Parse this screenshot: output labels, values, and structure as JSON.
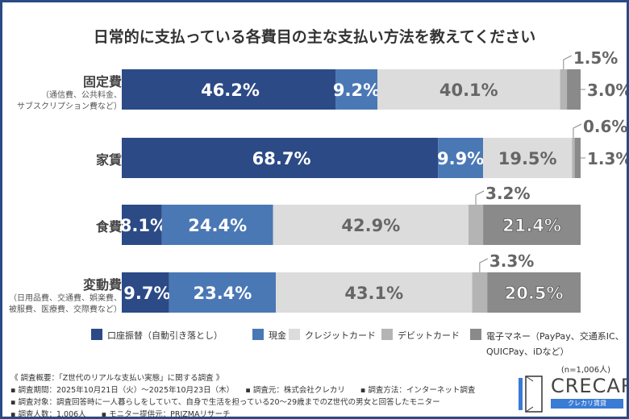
{
  "chart_data": {
    "type": "bar",
    "orientation": "horizontal-stacked-100",
    "title": "日常的に支払っている各費目の主な支払い方法を教えてください",
    "categories": [
      {
        "label": "固定費",
        "sub": [
          "（通信費、公共料金、",
          "サブスクリプション費など）"
        ]
      },
      {
        "label": "家賃",
        "sub": []
      },
      {
        "label": "食費",
        "sub": []
      },
      {
        "label": "変動費",
        "sub": [
          "（日用品費、交通費、娯楽費、",
          "被服費、医療費、交際費など）"
        ]
      }
    ],
    "series": [
      {
        "name": "口座振替（自動引き落とし）",
        "color": "#2b4a86",
        "values": [
          46.2,
          68.7,
          8.1,
          9.7
        ]
      },
      {
        "name": "現金",
        "color": "#4a78b5",
        "values": [
          9.2,
          9.9,
          24.4,
          23.4
        ]
      },
      {
        "name": "クレジットカード",
        "color": "#dcdcdc",
        "values": [
          40.1,
          19.5,
          42.9,
          43.1
        ]
      },
      {
        "name": "デビットカード",
        "color": "#b4b4b4",
        "values": [
          1.5,
          0.6,
          3.2,
          3.3
        ]
      },
      {
        "name": "電子マネー（PayPay、交通系IC、QUICPay、iDなど）",
        "color": "#8a8a8a",
        "values": [
          3.0,
          1.3,
          21.4,
          20.5
        ]
      }
    ],
    "unit": "%",
    "legend_position": "bottom",
    "note": "(n=1,006人)"
  },
  "legend_lines": [
    "電子マネー（PayPay、交通系IC、",
    "QUICPay、iDなど）"
  ],
  "footer": [
    "《 調査概要：「Z世代のリアルな支払い実態」に関する調査 》",
    "▪ 調査期間：2025年10月21日（火）～2025年10月23日（木）　　▪ 調査元：株式会社クレカリ　　▪ 調査方法：インターネット調査",
    "▪ 調査対象：調査回答時に一人暮らしをしていて、自身で生活を担っている20～29歳までのZ世代の男女と回答したモニター",
    "▪ 調査人数：1,006人　　▪ モニター提供元：PRIZMAリサーチ"
  ],
  "logo": {
    "text": "CRECARI",
    "sub": "クレカリ賃貸"
  }
}
